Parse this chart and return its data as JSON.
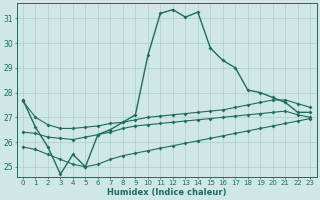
{
  "xlabel": "Humidex (Indice chaleur)",
  "bg_color": "#cfe8e5",
  "grid_color": "#aacfcc",
  "line_color": "#1e6b60",
  "xlim": [
    -0.5,
    23.5
  ],
  "ylim": [
    24.6,
    31.6
  ],
  "yticks": [
    25,
    26,
    27,
    28,
    29,
    30,
    31
  ],
  "xtick_labels": [
    "0",
    "1",
    "2",
    "3",
    "4",
    "5",
    "6",
    "7",
    "8",
    "9",
    "10",
    "11",
    "12",
    "13",
    "14",
    "15",
    "16",
    "17",
    "18",
    "19",
    "20",
    "21",
    "22",
    "23"
  ],
  "main_line": [
    27.7,
    26.6,
    25.8,
    24.7,
    25.5,
    25.0,
    26.3,
    26.5,
    26.8,
    27.1,
    29.5,
    31.2,
    31.35,
    31.05,
    31.25,
    29.8,
    29.3,
    29.0,
    28.1,
    28.0,
    27.8,
    27.6,
    27.2,
    27.2
  ],
  "upper_line": [
    27.65,
    27.0,
    26.7,
    26.55,
    26.55,
    26.6,
    26.65,
    26.75,
    26.8,
    26.9,
    27.0,
    27.05,
    27.1,
    27.15,
    27.2,
    27.25,
    27.3,
    27.4,
    27.5,
    27.6,
    27.7,
    27.7,
    27.55,
    27.4
  ],
  "mid_line": [
    26.4,
    26.35,
    26.2,
    26.15,
    26.1,
    26.2,
    26.3,
    26.4,
    26.55,
    26.65,
    26.7,
    26.75,
    26.8,
    26.85,
    26.9,
    26.95,
    27.0,
    27.05,
    27.1,
    27.15,
    27.2,
    27.25,
    27.1,
    27.0
  ],
  "lower_line": [
    25.8,
    25.7,
    25.5,
    25.3,
    25.1,
    25.0,
    25.1,
    25.3,
    25.45,
    25.55,
    25.65,
    25.75,
    25.85,
    25.95,
    26.05,
    26.15,
    26.25,
    26.35,
    26.45,
    26.55,
    26.65,
    26.75,
    26.85,
    26.95
  ]
}
